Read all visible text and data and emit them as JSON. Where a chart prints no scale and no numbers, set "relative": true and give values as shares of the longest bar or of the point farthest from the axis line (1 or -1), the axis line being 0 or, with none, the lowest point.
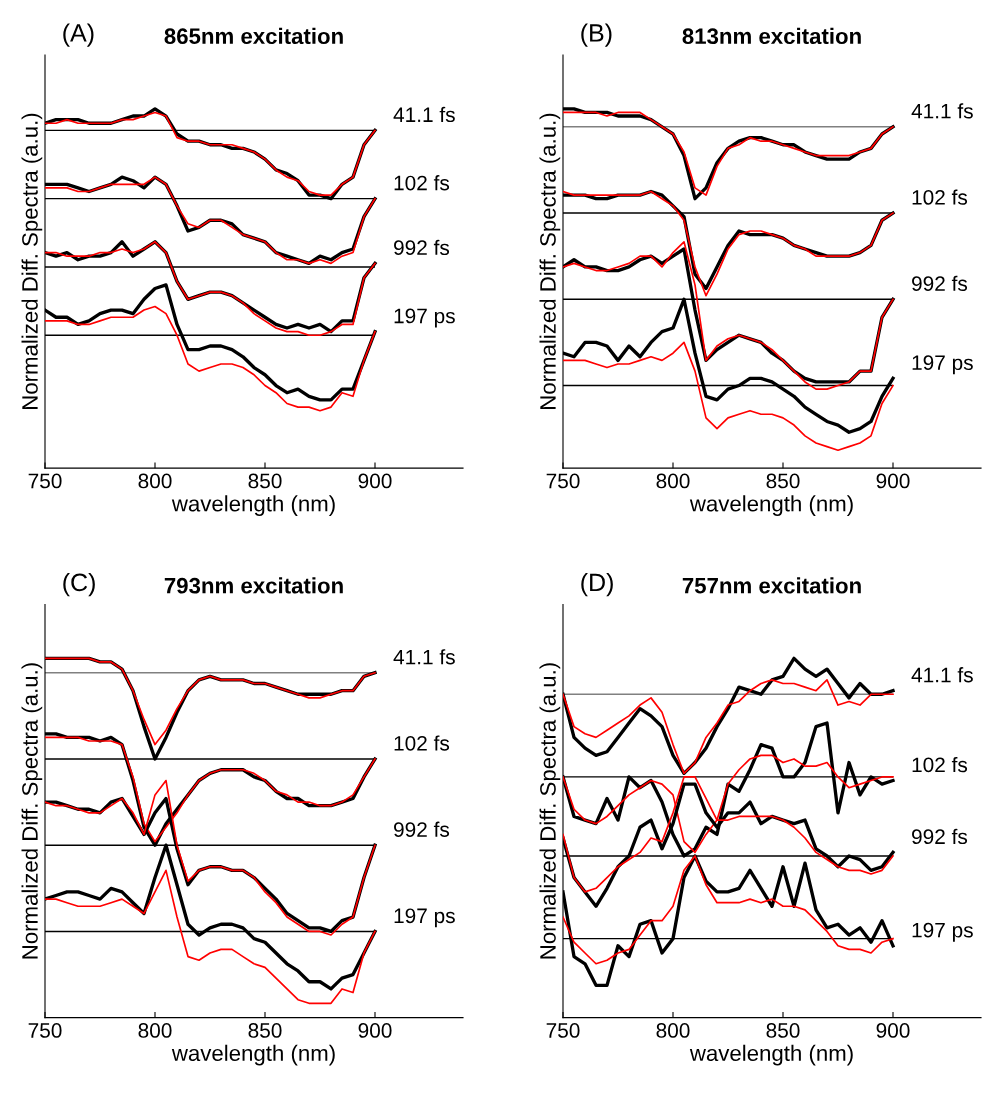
{
  "chart_data": [
    {
      "type": "line",
      "relative": true,
      "title": "865nm excitation",
      "annotations": [
        "(A)"
      ],
      "xlabel": "wavelength (nm)",
      "ylabel": "Normalized Diff. Spectra (a.u.)",
      "xlim": [
        750,
        940
      ],
      "xticks": [
        750,
        800,
        850,
        900
      ],
      "tick_labels": "x",
      "x": [
        750,
        755,
        760,
        765,
        770,
        775,
        780,
        785,
        790,
        795,
        800,
        805,
        810,
        815,
        820,
        825,
        830,
        835,
        840,
        845,
        850,
        855,
        860,
        865,
        870,
        875,
        880,
        885,
        890,
        895,
        900
      ],
      "series": [
        {
          "name": "41.1 fs",
          "color": "#000000",
          "values": [
            0.96,
            0.97,
            0.97,
            0.97,
            0.96,
            0.96,
            0.96,
            0.97,
            0.98,
            0.98,
            1.0,
            0.98,
            0.93,
            0.91,
            0.91,
            0.9,
            0.9,
            0.89,
            0.89,
            0.88,
            0.86,
            0.83,
            0.82,
            0.8,
            0.76,
            0.76,
            0.75,
            0.79,
            0.81,
            0.9,
            0.94
          ]
        },
        {
          "color": "#ff0000",
          "values": [
            0.96,
            0.96,
            0.97,
            0.96,
            0.96,
            0.96,
            0.96,
            0.97,
            0.97,
            0.98,
            0.99,
            0.98,
            0.92,
            0.91,
            0.91,
            0.9,
            0.9,
            0.9,
            0.89,
            0.88,
            0.86,
            0.83,
            0.81,
            0.8,
            0.77,
            0.76,
            0.76,
            0.79,
            0.81,
            0.9,
            0.94
          ]
        },
        {
          "name": "102 fs",
          "color": "#000000",
          "values": [
            0.79,
            0.79,
            0.79,
            0.78,
            0.77,
            0.78,
            0.79,
            0.81,
            0.8,
            0.78,
            0.81,
            0.79,
            0.73,
            0.66,
            0.67,
            0.69,
            0.69,
            0.68,
            0.65,
            0.64,
            0.63,
            0.6,
            0.59,
            0.58,
            0.57,
            0.59,
            0.58,
            0.6,
            0.61,
            0.7,
            0.75
          ]
        },
        {
          "color": "#ff0000",
          "values": [
            0.78,
            0.78,
            0.78,
            0.77,
            0.77,
            0.78,
            0.79,
            0.79,
            0.79,
            0.79,
            0.81,
            0.79,
            0.73,
            0.68,
            0.67,
            0.69,
            0.69,
            0.67,
            0.65,
            0.64,
            0.63,
            0.6,
            0.58,
            0.58,
            0.57,
            0.58,
            0.57,
            0.59,
            0.6,
            0.7,
            0.75
          ]
        },
        {
          "name": "992 fs",
          "color": "#000000",
          "values": [
            0.6,
            0.59,
            0.6,
            0.58,
            0.59,
            0.59,
            0.6,
            0.63,
            0.59,
            0.61,
            0.63,
            0.6,
            0.52,
            0.47,
            0.48,
            0.49,
            0.49,
            0.48,
            0.46,
            0.44,
            0.42,
            0.4,
            0.39,
            0.4,
            0.39,
            0.4,
            0.38,
            0.41,
            0.41,
            0.53,
            0.57
          ]
        },
        {
          "color": "#ff0000",
          "values": [
            0.6,
            0.6,
            0.59,
            0.59,
            0.59,
            0.6,
            0.6,
            0.61,
            0.6,
            0.61,
            0.63,
            0.6,
            0.52,
            0.47,
            0.48,
            0.49,
            0.49,
            0.48,
            0.46,
            0.43,
            0.41,
            0.39,
            0.38,
            0.38,
            0.37,
            0.37,
            0.38,
            0.4,
            0.4,
            0.53,
            0.57
          ]
        },
        {
          "name": "197 ps",
          "color": "#000000",
          "values": [
            0.44,
            0.42,
            0.42,
            0.4,
            0.41,
            0.43,
            0.44,
            0.44,
            0.43,
            0.47,
            0.5,
            0.51,
            0.4,
            0.33,
            0.33,
            0.34,
            0.34,
            0.33,
            0.31,
            0.28,
            0.26,
            0.23,
            0.21,
            0.22,
            0.2,
            0.19,
            0.19,
            0.22,
            0.22,
            0.3,
            0.38
          ]
        },
        {
          "color": "#ff0000",
          "values": [
            0.41,
            0.41,
            0.41,
            0.4,
            0.4,
            0.41,
            0.42,
            0.42,
            0.42,
            0.44,
            0.45,
            0.43,
            0.37,
            0.29,
            0.27,
            0.28,
            0.29,
            0.29,
            0.28,
            0.26,
            0.23,
            0.21,
            0.18,
            0.17,
            0.17,
            0.16,
            0.17,
            0.21,
            0.2,
            0.3,
            0.38
          ]
        }
      ],
      "ref_lines": [
        {
          "axis": "y",
          "value": 0.94,
          "color": "#000000"
        },
        {
          "axis": "y",
          "value": 0.75,
          "color": "#000000"
        },
        {
          "axis": "y",
          "value": 0.56,
          "color": "#000000"
        },
        {
          "axis": "y",
          "value": 0.37,
          "color": "#000000"
        }
      ]
    },
    {
      "type": "line",
      "relative": true,
      "title": "813nm excitation",
      "annotations": [
        "(B)"
      ],
      "xlabel": "wavelength (nm)",
      "ylabel": "Normalized Diff. Spectra (a.u.)",
      "xlim": [
        750,
        940
      ],
      "xticks": [
        750,
        800,
        850,
        900
      ],
      "tick_labels": "x",
      "x": [
        750,
        755,
        760,
        765,
        770,
        775,
        780,
        785,
        790,
        795,
        800,
        805,
        810,
        815,
        820,
        825,
        830,
        835,
        840,
        845,
        850,
        855,
        860,
        865,
        870,
        875,
        880,
        885,
        890,
        895,
        900
      ],
      "series": [
        {
          "name": "41.1 fs",
          "color": "#000000",
          "values": [
            1.0,
            1.0,
            0.99,
            0.99,
            0.99,
            0.98,
            0.98,
            0.98,
            0.97,
            0.95,
            0.93,
            0.87,
            0.75,
            0.78,
            0.85,
            0.89,
            0.91,
            0.92,
            0.92,
            0.91,
            0.9,
            0.9,
            0.88,
            0.87,
            0.86,
            0.86,
            0.86,
            0.88,
            0.89,
            0.93,
            0.95
          ]
        },
        {
          "color": "#ff0000",
          "values": [
            0.99,
            0.99,
            0.99,
            0.99,
            0.98,
            0.99,
            0.99,
            0.99,
            0.97,
            0.95,
            0.93,
            0.88,
            0.78,
            0.76,
            0.84,
            0.89,
            0.9,
            0.92,
            0.91,
            0.91,
            0.9,
            0.89,
            0.88,
            0.87,
            0.87,
            0.87,
            0.87,
            0.88,
            0.89,
            0.93,
            0.95
          ]
        },
        {
          "name": "102 fs",
          "color": "#000000",
          "values": [
            0.76,
            0.76,
            0.76,
            0.75,
            0.75,
            0.76,
            0.76,
            0.76,
            0.77,
            0.76,
            0.73,
            0.7,
            0.54,
            0.5,
            0.56,
            0.62,
            0.66,
            0.65,
            0.65,
            0.65,
            0.64,
            0.62,
            0.61,
            0.6,
            0.59,
            0.59,
            0.59,
            0.6,
            0.62,
            0.69,
            0.71
          ]
        },
        {
          "color": "#ff0000",
          "values": [
            0.77,
            0.76,
            0.76,
            0.76,
            0.76,
            0.76,
            0.76,
            0.76,
            0.77,
            0.75,
            0.73,
            0.69,
            0.56,
            0.48,
            0.54,
            0.61,
            0.65,
            0.66,
            0.66,
            0.65,
            0.64,
            0.62,
            0.61,
            0.59,
            0.59,
            0.59,
            0.59,
            0.6,
            0.62,
            0.69,
            0.71
          ]
        },
        {
          "name": "992 fs",
          "color": "#000000",
          "values": [
            0.56,
            0.58,
            0.56,
            0.56,
            0.55,
            0.55,
            0.56,
            0.58,
            0.59,
            0.57,
            0.59,
            0.61,
            0.44,
            0.3,
            0.33,
            0.35,
            0.37,
            0.36,
            0.35,
            0.32,
            0.3,
            0.27,
            0.25,
            0.24,
            0.24,
            0.24,
            0.24,
            0.27,
            0.27,
            0.42,
            0.47
          ]
        },
        {
          "color": "#ff0000",
          "values": [
            0.56,
            0.57,
            0.56,
            0.55,
            0.55,
            0.56,
            0.57,
            0.59,
            0.59,
            0.56,
            0.6,
            0.63,
            0.51,
            0.3,
            0.34,
            0.36,
            0.37,
            0.36,
            0.35,
            0.33,
            0.3,
            0.27,
            0.24,
            0.22,
            0.22,
            0.23,
            0.24,
            0.27,
            0.27,
            0.42,
            0.47
          ]
        },
        {
          "name": "197 ps",
          "color": "#000000",
          "values": [
            0.32,
            0.31,
            0.35,
            0.35,
            0.34,
            0.3,
            0.34,
            0.31,
            0.35,
            0.38,
            0.39,
            0.47,
            0.32,
            0.2,
            0.19,
            0.22,
            0.23,
            0.25,
            0.25,
            0.24,
            0.22,
            0.2,
            0.17,
            0.15,
            0.13,
            0.12,
            0.1,
            0.11,
            0.13,
            0.2,
            0.25
          ]
        },
        {
          "color": "#ff0000",
          "values": [
            0.3,
            0.3,
            0.3,
            0.29,
            0.28,
            0.29,
            0.29,
            0.3,
            0.31,
            0.3,
            0.32,
            0.35,
            0.27,
            0.14,
            0.11,
            0.14,
            0.15,
            0.16,
            0.15,
            0.15,
            0.14,
            0.12,
            0.09,
            0.07,
            0.06,
            0.05,
            0.06,
            0.07,
            0.09,
            0.18,
            0.23
          ]
        }
      ],
      "ref_lines": [
        {
          "axis": "y",
          "value": 0.95,
          "color": "#808080"
        },
        {
          "axis": "y",
          "value": 0.71,
          "color": "#000000"
        },
        {
          "axis": "y",
          "value": 0.47,
          "color": "#000000"
        },
        {
          "axis": "y",
          "value": 0.23,
          "color": "#000000"
        }
      ]
    },
    {
      "type": "line",
      "relative": true,
      "title": "793nm excitation",
      "annotations": [
        "(C)"
      ],
      "xlabel": "wavelength (nm)",
      "ylabel": "Normalized Diff. Spectra (a.u.)",
      "xlim": [
        750,
        940
      ],
      "xticks": [
        750,
        800,
        850,
        900
      ],
      "tick_labels": "x",
      "x": [
        750,
        755,
        760,
        765,
        770,
        775,
        780,
        785,
        790,
        795,
        800,
        805,
        810,
        815,
        820,
        825,
        830,
        835,
        840,
        845,
        850,
        855,
        860,
        865,
        870,
        875,
        880,
        885,
        890,
        895,
        900
      ],
      "series": [
        {
          "name": "41.1 fs",
          "color": "#000000",
          "values": [
            1.0,
            1.0,
            1.0,
            1.0,
            1.0,
            0.99,
            0.99,
            0.97,
            0.91,
            0.81,
            0.72,
            0.78,
            0.85,
            0.91,
            0.94,
            0.95,
            0.94,
            0.94,
            0.94,
            0.93,
            0.93,
            0.92,
            0.91,
            0.9,
            0.9,
            0.9,
            0.9,
            0.91,
            0.91,
            0.95,
            0.96
          ]
        },
        {
          "color": "#ff0000",
          "values": [
            1.0,
            1.0,
            1.0,
            1.0,
            1.0,
            0.99,
            0.99,
            0.97,
            0.91,
            0.83,
            0.76,
            0.8,
            0.86,
            0.91,
            0.94,
            0.95,
            0.94,
            0.94,
            0.94,
            0.93,
            0.93,
            0.92,
            0.91,
            0.9,
            0.89,
            0.89,
            0.9,
            0.91,
            0.91,
            0.95,
            0.96
          ]
        },
        {
          "name": "102 fs",
          "color": "#000000",
          "values": [
            0.79,
            0.79,
            0.78,
            0.78,
            0.78,
            0.77,
            0.78,
            0.76,
            0.66,
            0.53,
            0.48,
            0.54,
            0.58,
            0.62,
            0.66,
            0.68,
            0.69,
            0.69,
            0.69,
            0.67,
            0.66,
            0.63,
            0.61,
            0.61,
            0.59,
            0.59,
            0.59,
            0.6,
            0.61,
            0.67,
            0.72
          ]
        },
        {
          "color": "#ff0000",
          "values": [
            0.78,
            0.78,
            0.78,
            0.78,
            0.77,
            0.77,
            0.77,
            0.76,
            0.67,
            0.54,
            0.49,
            0.53,
            0.57,
            0.62,
            0.66,
            0.68,
            0.69,
            0.69,
            0.69,
            0.68,
            0.66,
            0.63,
            0.62,
            0.6,
            0.6,
            0.59,
            0.59,
            0.6,
            0.62,
            0.67,
            0.72
          ]
        },
        {
          "name": "992 fs",
          "color": "#000000",
          "values": [
            0.6,
            0.6,
            0.59,
            0.58,
            0.58,
            0.57,
            0.6,
            0.61,
            0.56,
            0.51,
            0.57,
            0.61,
            0.47,
            0.37,
            0.41,
            0.42,
            0.42,
            0.41,
            0.41,
            0.39,
            0.36,
            0.33,
            0.29,
            0.27,
            0.25,
            0.25,
            0.24,
            0.27,
            0.28,
            0.39,
            0.48
          ]
        },
        {
          "color": "#ff0000",
          "values": [
            0.6,
            0.59,
            0.59,
            0.58,
            0.57,
            0.57,
            0.59,
            0.61,
            0.57,
            0.51,
            0.62,
            0.66,
            0.48,
            0.38,
            0.41,
            0.42,
            0.42,
            0.41,
            0.41,
            0.39,
            0.35,
            0.32,
            0.28,
            0.26,
            0.24,
            0.24,
            0.23,
            0.26,
            0.28,
            0.39,
            0.48
          ]
        },
        {
          "name": "197 ps",
          "color": "#000000",
          "values": [
            0.33,
            0.34,
            0.35,
            0.35,
            0.34,
            0.33,
            0.36,
            0.35,
            0.32,
            0.29,
            0.39,
            0.48,
            0.37,
            0.26,
            0.23,
            0.25,
            0.26,
            0.26,
            0.25,
            0.22,
            0.21,
            0.18,
            0.15,
            0.13,
            0.1,
            0.1,
            0.08,
            0.11,
            0.12,
            0.18,
            0.24
          ]
        },
        {
          "color": "#ff0000",
          "values": [
            0.33,
            0.33,
            0.32,
            0.31,
            0.31,
            0.31,
            0.32,
            0.33,
            0.31,
            0.29,
            0.35,
            0.41,
            0.28,
            0.17,
            0.16,
            0.18,
            0.19,
            0.19,
            0.17,
            0.15,
            0.14,
            0.11,
            0.08,
            0.05,
            0.04,
            0.04,
            0.04,
            0.08,
            0.07,
            0.18,
            0.24
          ]
        }
      ],
      "ref_lines": [
        {
          "axis": "y",
          "value": 0.96,
          "color": "#808080"
        },
        {
          "axis": "y",
          "value": 0.72,
          "color": "#000000"
        },
        {
          "axis": "y",
          "value": 0.48,
          "color": "#000000"
        },
        {
          "axis": "y",
          "value": 0.24,
          "color": "#000000"
        }
      ]
    },
    {
      "type": "line",
      "relative": true,
      "title": "757nm excitation",
      "annotations": [
        "(D)"
      ],
      "xlabel": "wavelength (nm)",
      "ylabel": "Normalized Diff. Spectra (a.u.)",
      "xlim": [
        750,
        940
      ],
      "xticks": [
        750,
        800,
        850,
        900
      ],
      "tick_labels": "x",
      "x": [
        750,
        755,
        760,
        765,
        770,
        775,
        780,
        785,
        790,
        795,
        800,
        805,
        810,
        815,
        820,
        825,
        830,
        835,
        840,
        845,
        850,
        855,
        860,
        865,
        870,
        875,
        880,
        885,
        890,
        895,
        900
      ],
      "series": [
        {
          "name": "41.1 fs",
          "color": "#000000",
          "values": [
            0.9,
            0.78,
            0.75,
            0.73,
            0.74,
            0.78,
            0.82,
            0.86,
            0.84,
            0.81,
            0.73,
            0.68,
            0.71,
            0.75,
            0.81,
            0.86,
            0.92,
            0.91,
            0.9,
            0.94,
            0.95,
            1.0,
            0.97,
            0.95,
            0.97,
            0.93,
            0.89,
            0.93,
            0.9,
            0.9,
            0.91
          ]
        },
        {
          "color": "#ff0000",
          "values": [
            0.9,
            0.81,
            0.79,
            0.78,
            0.8,
            0.82,
            0.84,
            0.87,
            0.89,
            0.85,
            0.76,
            0.68,
            0.71,
            0.78,
            0.82,
            0.87,
            0.88,
            0.91,
            0.93,
            0.94,
            0.93,
            0.93,
            0.92,
            0.91,
            0.94,
            0.87,
            0.88,
            0.87,
            0.9,
            0.9,
            0.9
          ]
        },
        {
          "name": "102 fs",
          "color": "#000000",
          "values": [
            0.67,
            0.56,
            0.55,
            0.54,
            0.61,
            0.55,
            0.67,
            0.64,
            0.66,
            0.6,
            0.51,
            0.45,
            0.47,
            0.53,
            0.51,
            0.65,
            0.63,
            0.69,
            0.76,
            0.75,
            0.67,
            0.67,
            0.71,
            0.81,
            0.82,
            0.57,
            0.71,
            0.62,
            0.67,
            0.65,
            0.66
          ]
        },
        {
          "color": "#ff0000",
          "values": [
            0.67,
            0.58,
            0.55,
            0.54,
            0.56,
            0.59,
            0.62,
            0.64,
            0.66,
            0.65,
            0.62,
            0.49,
            0.46,
            0.51,
            0.55,
            0.65,
            0.69,
            0.72,
            0.73,
            0.73,
            0.71,
            0.72,
            0.7,
            0.7,
            0.71,
            0.67,
            0.64,
            0.65,
            0.66,
            0.67,
            0.67
          ]
        },
        {
          "name": "992 fs",
          "color": "#000000",
          "values": [
            0.5,
            0.39,
            0.35,
            0.31,
            0.36,
            0.42,
            0.45,
            0.53,
            0.55,
            0.47,
            0.54,
            0.65,
            0.65,
            0.57,
            0.53,
            0.57,
            0.57,
            0.6,
            0.54,
            0.56,
            0.55,
            0.54,
            0.55,
            0.47,
            0.45,
            0.42,
            0.45,
            0.44,
            0.41,
            0.42,
            0.46
          ]
        },
        {
          "color": "#ff0000",
          "values": [
            0.51,
            0.39,
            0.35,
            0.36,
            0.39,
            0.42,
            0.44,
            0.46,
            0.5,
            0.49,
            0.57,
            0.67,
            0.67,
            0.61,
            0.55,
            0.55,
            0.56,
            0.56,
            0.56,
            0.56,
            0.55,
            0.53,
            0.5,
            0.46,
            0.44,
            0.42,
            0.41,
            0.41,
            0.4,
            0.41,
            0.45
          ]
        },
        {
          "name": "197 ps",
          "color": "#000000",
          "values": [
            0.35,
            0.17,
            0.15,
            0.09,
            0.09,
            0.2,
            0.17,
            0.26,
            0.27,
            0.18,
            0.22,
            0.39,
            0.45,
            0.38,
            0.35,
            0.35,
            0.36,
            0.41,
            0.36,
            0.31,
            0.42,
            0.31,
            0.43,
            0.3,
            0.25,
            0.26,
            0.23,
            0.25,
            0.21,
            0.27,
            0.2
          ]
        },
        {
          "color": "#ff0000",
          "values": [
            0.28,
            0.21,
            0.18,
            0.15,
            0.16,
            0.18,
            0.19,
            0.23,
            0.27,
            0.27,
            0.31,
            0.41,
            0.45,
            0.37,
            0.32,
            0.32,
            0.32,
            0.33,
            0.32,
            0.33,
            0.31,
            0.31,
            0.3,
            0.27,
            0.24,
            0.2,
            0.19,
            0.19,
            0.18,
            0.21,
            0.22
          ]
        }
      ],
      "ref_lines": [
        {
          "axis": "y",
          "value": 0.9,
          "color": "#808080"
        },
        {
          "axis": "y",
          "value": 0.67,
          "color": "#000000"
        },
        {
          "axis": "y",
          "value": 0.45,
          "color": "#000000"
        },
        {
          "axis": "y",
          "value": 0.22,
          "color": "#000000"
        }
      ]
    }
  ]
}
